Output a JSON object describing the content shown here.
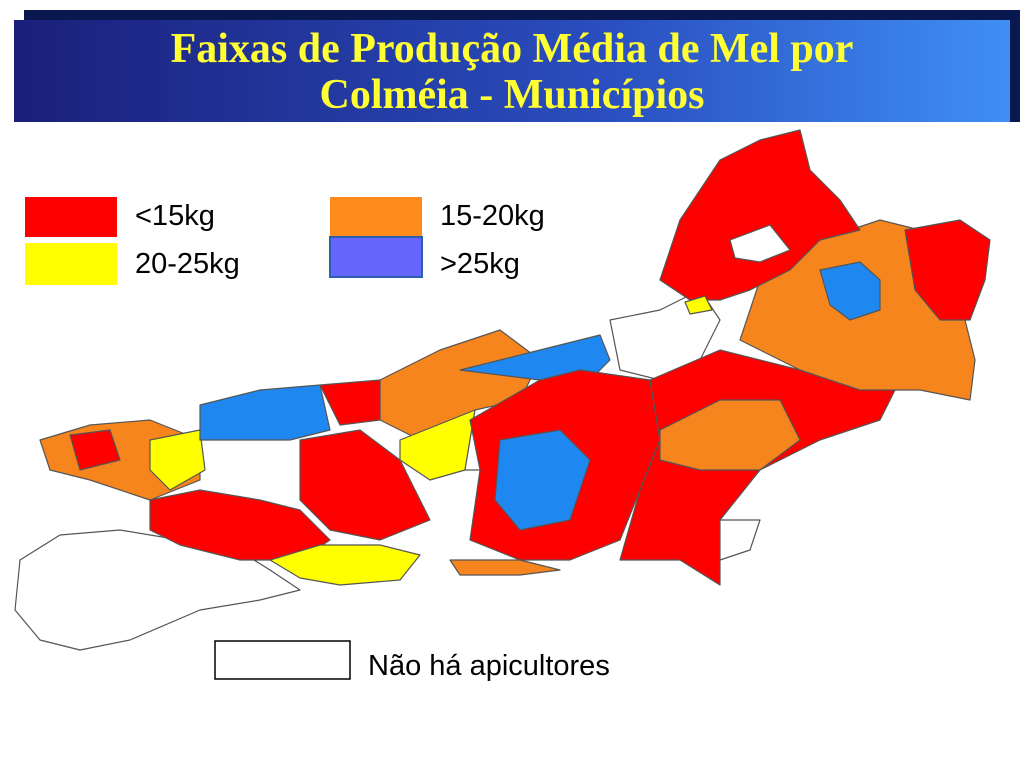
{
  "title": [
    "Faixas de Produção Média de Mel  por",
    "Colméia - Municípios"
  ],
  "legend": [
    {
      "label": "<15kg",
      "color": "#ff0000"
    },
    {
      "label": "15-20kg",
      "color": "#ff8c1a"
    },
    {
      "label": "20-25kg",
      "color": "#ffff00"
    },
    {
      "label": ">25kg",
      "color": "#6666ff"
    }
  ],
  "no_data_label": "Não há apicultores"
}
